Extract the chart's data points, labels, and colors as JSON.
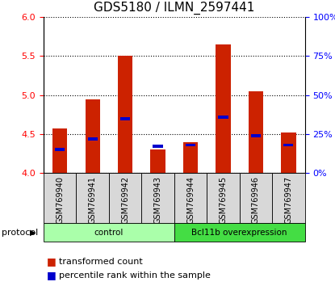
{
  "title": "GDS5180 / ILMN_2597441",
  "samples": [
    "GSM769940",
    "GSM769941",
    "GSM769942",
    "GSM769943",
    "GSM769944",
    "GSM769945",
    "GSM769946",
    "GSM769947"
  ],
  "transformed_count": [
    4.57,
    4.95,
    5.5,
    4.3,
    4.4,
    5.65,
    5.05,
    4.52
  ],
  "percentile_rank": [
    15,
    22,
    35,
    17,
    18,
    36,
    24,
    18
  ],
  "bar_bottom": 4.0,
  "ylim": [
    4.0,
    6.0
  ],
  "ylim_right": [
    0,
    100
  ],
  "yticks_left": [
    4.0,
    4.5,
    5.0,
    5.5,
    6.0
  ],
  "yticks_right": [
    0,
    25,
    50,
    75,
    100
  ],
  "ytick_labels_right": [
    "0%",
    "25%",
    "50%",
    "75%",
    "100%"
  ],
  "groups": [
    {
      "label": "control",
      "start": 0,
      "end": 4,
      "color": "#aaffaa"
    },
    {
      "label": "Bcl11b overexpression",
      "start": 4,
      "end": 8,
      "color": "#44dd44"
    }
  ],
  "protocol_label": "protocol",
  "bar_color_red": "#cc2200",
  "bar_color_blue": "#0000cc",
  "bg_color": "#d8d8d8",
  "grid_color": "#000000",
  "title_fontsize": 11,
  "tick_fontsize": 8,
  "legend_fontsize": 8,
  "red_bar_width": 0.45,
  "blue_bar_height": 0.04,
  "blue_bar_width": 0.3
}
